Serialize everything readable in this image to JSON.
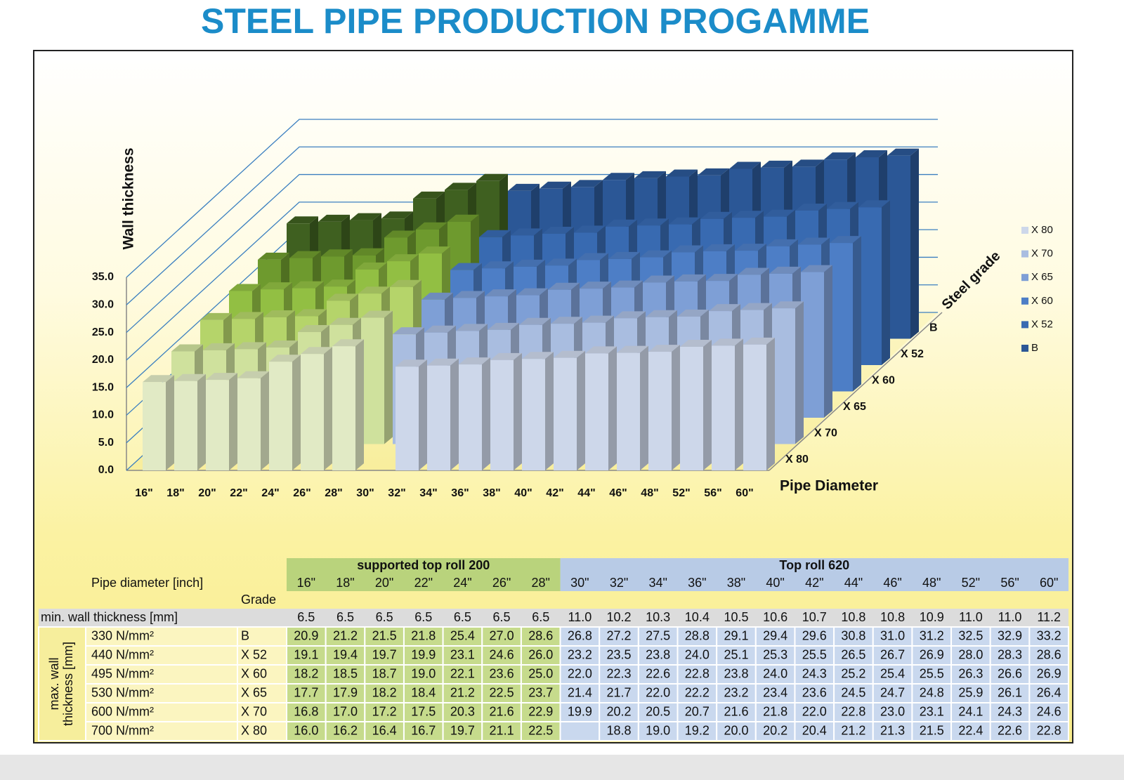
{
  "title": "STEEL PIPE PRODUCTION PROGAMME",
  "chart": {
    "y_label": "Wall thickness",
    "x_label": "Pipe Diameter",
    "z_label": "Steel grade",
    "ylim": [
      0,
      35
    ],
    "yticks": [
      {
        "value": 0,
        "label": "0.0"
      },
      {
        "value": 5,
        "label": "5.0"
      },
      {
        "value": 10,
        "label": "10.0"
      },
      {
        "value": 15,
        "label": "15.0"
      },
      {
        "value": 20,
        "label": "20.0"
      },
      {
        "value": 25,
        "label": "25.0"
      },
      {
        "value": 30,
        "label": "30.0"
      },
      {
        "value": 35,
        "label": "35.0"
      }
    ],
    "grid": true
  },
  "table": {
    "header_label": "Pipe diameter [inch]",
    "grade_label": "Grade",
    "groups": [
      {
        "name": "supported top roll 200",
        "header_color": "#b9d37c",
        "cell_color": "#c6db8c",
        "bar_colors": [
          "#3f6020",
          "#6e9a2e",
          "#92bf43",
          "#b5d46a",
          "#cfe19d",
          "#e1eac5"
        ],
        "diameters": [
          "16\"",
          "18\"",
          "20\"",
          "22\"",
          "24\"",
          "26\"",
          "28\""
        ]
      },
      {
        "name": "Top roll 620",
        "header_color": "#b8cbe6",
        "cell_color": "#c9d8ee",
        "bar_colors": [
          "#2b5796",
          "#386ab1",
          "#4d7ec6",
          "#7e9fd6",
          "#a9bde0",
          "#cdd7ea"
        ],
        "diameters": [
          "30\"",
          "32\"",
          "34\"",
          "36\"",
          "38\"",
          "40\"",
          "42\"",
          "44\"",
          "46\"",
          "48\"",
          "52\"",
          "56\"",
          "60\""
        ]
      }
    ],
    "min_label": "min. wall thickness [mm]",
    "min_values": [
      "6.5",
      "6.5",
      "6.5",
      "6.5",
      "6.5",
      "6.5",
      "6.5",
      "11.0",
      "10.2",
      "10.3",
      "10.4",
      "10.5",
      "10.6",
      "10.7",
      "10.8",
      "10.8",
      "10.9",
      "11.0",
      "11.0",
      "11.2"
    ],
    "max_label": [
      "max. wall",
      "thickness [mm]"
    ],
    "rows": [
      {
        "strength": "330 N/mm²",
        "grade": "B",
        "values": [
          "20.9",
          "21.2",
          "21.5",
          "21.8",
          "25.4",
          "27.0",
          "28.6",
          "26.8",
          "27.2",
          "27.5",
          "28.8",
          "29.1",
          "29.4",
          "29.6",
          "30.8",
          "31.0",
          "31.2",
          "32.5",
          "32.9",
          "33.2"
        ]
      },
      {
        "strength": "440 N/mm²",
        "grade": "X 52",
        "values": [
          "19.1",
          "19.4",
          "19.7",
          "19.9",
          "23.1",
          "24.6",
          "26.0",
          "23.2",
          "23.5",
          "23.8",
          "24.0",
          "25.1",
          "25.3",
          "25.5",
          "26.5",
          "26.7",
          "26.9",
          "28.0",
          "28.3",
          "28.6"
        ]
      },
      {
        "strength": "495 N/mm²",
        "grade": "X 60",
        "values": [
          "18.2",
          "18.5",
          "18.7",
          "19.0",
          "22.1",
          "23.6",
          "25.0",
          "22.0",
          "22.3",
          "22.6",
          "22.8",
          "23.8",
          "24.0",
          "24.3",
          "25.2",
          "25.4",
          "25.5",
          "26.3",
          "26.6",
          "26.9"
        ]
      },
      {
        "strength": "530 N/mm²",
        "grade": "X 65",
        "values": [
          "17.7",
          "17.9",
          "18.2",
          "18.4",
          "21.2",
          "22.5",
          "23.7",
          "21.4",
          "21.7",
          "22.0",
          "22.2",
          "23.2",
          "23.4",
          "23.6",
          "24.5",
          "24.7",
          "24.8",
          "25.9",
          "26.1",
          "26.4"
        ]
      },
      {
        "strength": "600 N/mm²",
        "grade": "X 70",
        "values": [
          "16.8",
          "17.0",
          "17.2",
          "17.5",
          "20.3",
          "21.6",
          "22.9",
          "19.9",
          "20.2",
          "20.5",
          "20.7",
          "21.6",
          "21.8",
          "22.0",
          "22.8",
          "23.0",
          "23.1",
          "24.1",
          "24.3",
          "24.6"
        ]
      },
      {
        "strength": "700 N/mm²",
        "grade": "X 80",
        "values": [
          "16.0",
          "16.2",
          "16.4",
          "16.7",
          "19.7",
          "21.1",
          "22.5",
          null,
          "18.8",
          "19.0",
          "19.2",
          "20.0",
          "20.2",
          "20.4",
          "21.2",
          "21.3",
          "21.5",
          "22.4",
          "22.6",
          "22.8"
        ]
      }
    ]
  }
}
